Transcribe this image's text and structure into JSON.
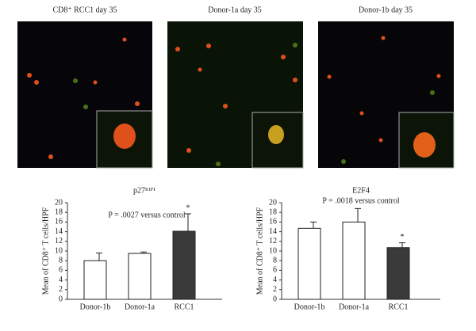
{
  "images": [
    {
      "label": "CD8⁺ RCC1 day 35"
    },
    {
      "label": "Donor-1a day 35"
    },
    {
      "label": "Donor-1b day 35"
    }
  ],
  "chart_data": [
    {
      "type": "bar",
      "title": "p27ᴷᴵᴾ¹",
      "y_label": "Mean of CD8⁺ T cells/HPF",
      "annotation": "P = .0027 versus control",
      "significance": "*",
      "categories": [
        "Donor-1b",
        "Donor-1a",
        "RCC1"
      ],
      "values": [
        8,
        9.5,
        14.1
      ],
      "errors": [
        1.6,
        0.3,
        3.6
      ],
      "colors": [
        "#ffffff",
        "#ffffff",
        "#3a3a3a"
      ],
      "ylim": [
        0,
        20
      ],
      "yticks": [
        0,
        2,
        4,
        6,
        8,
        10,
        12,
        14,
        16,
        18,
        20
      ]
    },
    {
      "type": "bar",
      "title": "E2F4",
      "y_label": "Mean of CD8⁺ T cells/HPF",
      "annotation": "P = .0018 versus control",
      "significance": "*",
      "categories": [
        "Donor-1b",
        "Donor-1a",
        "RCC1"
      ],
      "values": [
        14.7,
        16,
        10.7
      ],
      "errors": [
        1.3,
        2.8,
        1
      ],
      "colors": [
        "#ffffff",
        "#ffffff",
        "#3a3a3a"
      ],
      "ylim": [
        0,
        20
      ],
      "yticks": [
        0,
        2,
        4,
        6,
        8,
        10,
        12,
        14,
        16,
        18,
        20
      ]
    }
  ]
}
